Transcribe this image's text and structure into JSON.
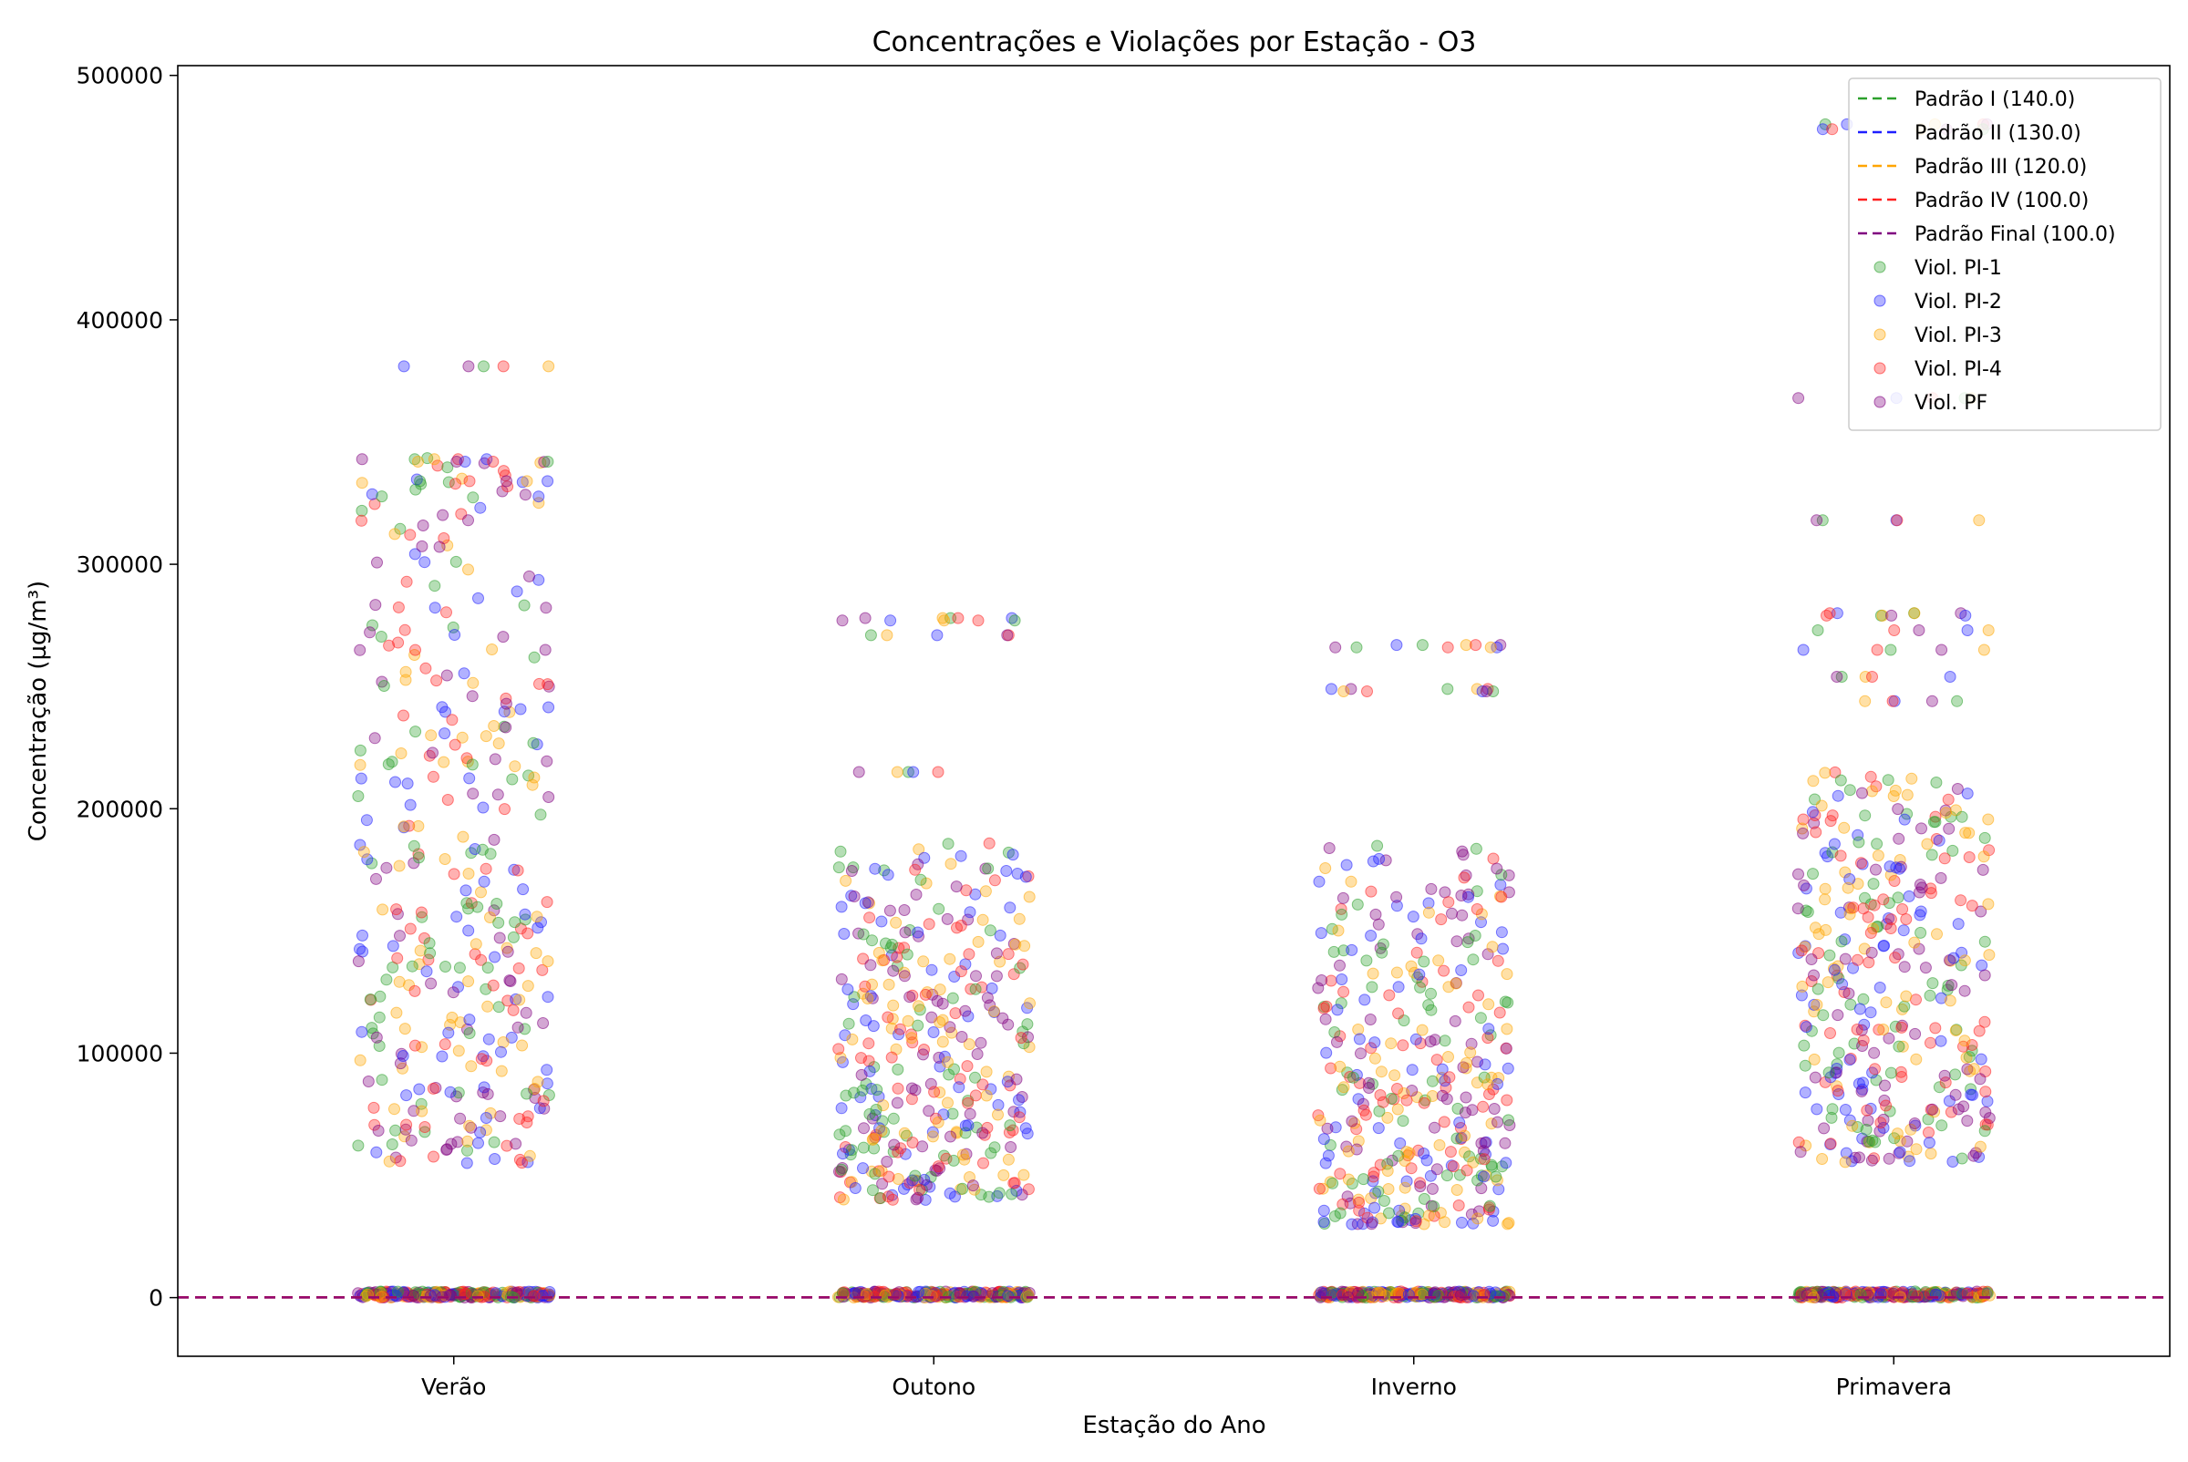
{
  "chart_data": {
    "type": "scatter",
    "title": "Concentrações e Violações por Estação - O3",
    "xlabel": "Estação do Ano",
    "ylabel": "Concentração (µg/m³)",
    "categories": [
      "Verão",
      "Outono",
      "Inverno",
      "Primavera"
    ],
    "ylim": [
      -24000,
      504000
    ],
    "yticks": [
      0,
      100000,
      200000,
      300000,
      400000,
      500000
    ],
    "ytick_labels": [
      "0",
      "100000",
      "200000",
      "300000",
      "400000",
      "500000"
    ],
    "grid": false,
    "legend_position": "top-right",
    "thresholds": [
      {
        "name": "Padrão I (140.0)",
        "value": 140.0,
        "color": "#2ca02c"
      },
      {
        "name": "Padrão II (130.0)",
        "value": 130.0,
        "color": "#1f1fff"
      },
      {
        "name": "Padrão III (120.0)",
        "value": 120.0,
        "color": "#ffa500"
      },
      {
        "name": "Padrão IV (100.0)",
        "value": 100.0,
        "color": "#ff2020"
      },
      {
        "name": "Padrão Final (100.0)",
        "value": 100.0,
        "color": "#800080"
      }
    ],
    "series": [
      {
        "name": "Viol. PI-1",
        "color": "#2ca02c"
      },
      {
        "name": "Viol. PI-2",
        "color": "#1f1fff"
      },
      {
        "name": "Viol. PI-3",
        "color": "#ffa500"
      },
      {
        "name": "Viol. PI-4",
        "color": "#ff2020"
      },
      {
        "name": "Viol. PF",
        "color": "#800080"
      }
    ],
    "distribution": [
      {
        "category": "Verão",
        "min": 42000,
        "max": 381000,
        "dense_low": 55000,
        "dense_high": 345000,
        "outliers": [
          381000,
          343000,
          342000,
          334000
        ]
      },
      {
        "category": "Outono",
        "min": 36000,
        "max": 278000,
        "dense_low": 40000,
        "dense_high": 186000,
        "outliers": [
          278000,
          277000,
          271000,
          215000
        ]
      },
      {
        "category": "Inverno",
        "min": 20000,
        "max": 267000,
        "dense_low": 30000,
        "dense_high": 185000,
        "outliers": [
          267000,
          266000,
          249000,
          248000
        ]
      },
      {
        "category": "Primavera",
        "min": 52000,
        "max": 480000,
        "dense_low": 55000,
        "dense_high": 215000,
        "outliers": [
          480000,
          478000,
          368000,
          318000,
          280000,
          279000,
          273000,
          265000,
          254000,
          244000
        ]
      }
    ]
  }
}
